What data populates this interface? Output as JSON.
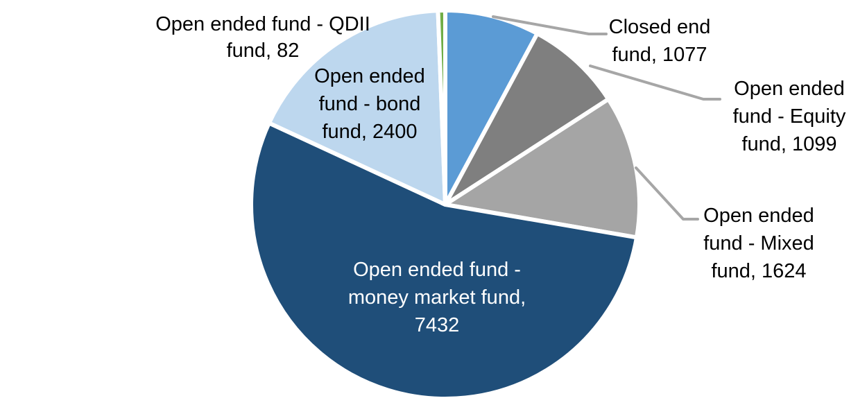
{
  "chart_data": {
    "type": "pie",
    "title": "",
    "legend": "none",
    "total": 13714,
    "start_angle_deg": 0,
    "direction": "clockwise",
    "leader_line_color": "#A6A6A6",
    "slice_gap_color": "#FFFFFF",
    "slices": [
      {
        "name": "closed-end-fund",
        "label": "Closed end fund",
        "value": 1077,
        "color": "#5B9BD5",
        "label_color": "#000000",
        "label_lines": [
          "Closed end",
          "fund, 1077"
        ]
      },
      {
        "name": "open-ended-equity-fund",
        "label": "Open ended fund - Equity fund",
        "value": 1099,
        "color": "#7F7F7F",
        "label_color": "#000000",
        "label_lines": [
          "Open ended",
          "fund - Equity",
          "fund, 1099"
        ]
      },
      {
        "name": "open-ended-mixed-fund",
        "label": "Open ended fund - Mixed fund",
        "value": 1624,
        "color": "#A5A5A5",
        "label_color": "#000000",
        "label_lines": [
          "Open ended",
          "fund - Mixed",
          "fund, 1624"
        ]
      },
      {
        "name": "open-ended-money-market-fund",
        "label": "Open ended fund - money market fund",
        "value": 7432,
        "color": "#1F4E79",
        "label_color": "#FFFFFF",
        "label_lines": [
          "Open ended fund -",
          "money market fund,",
          "7432"
        ]
      },
      {
        "name": "open-ended-bond-fund",
        "label": "Open ended fund - bond fund",
        "value": 2400,
        "color": "#BDD7EE",
        "label_color": "#000000",
        "label_lines": [
          "Open ended",
          "fund - bond",
          "fund, 2400"
        ]
      },
      {
        "name": "open-ended-qdii-fund",
        "label": "Open ended fund - QDII fund",
        "value": 82,
        "color": "#70AD47",
        "label_color": "#000000",
        "label_lines": [
          "Open ended fund - QDII",
          "fund, 82"
        ]
      }
    ]
  }
}
